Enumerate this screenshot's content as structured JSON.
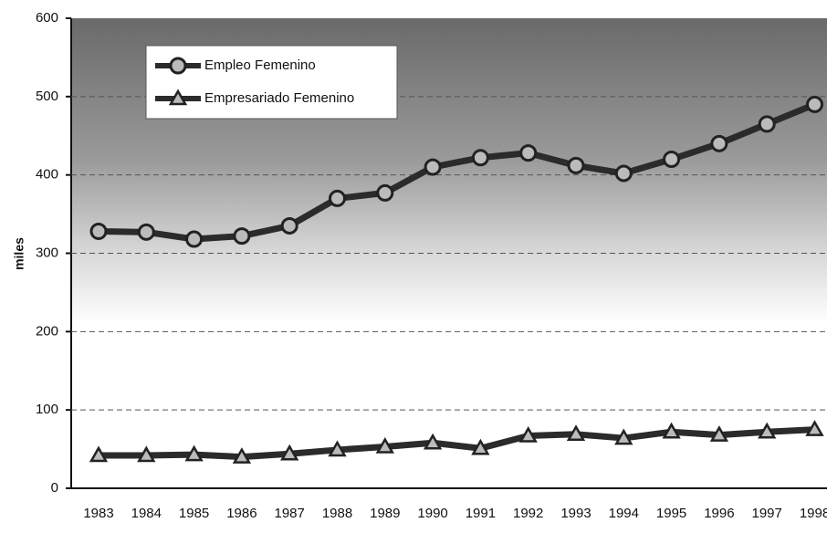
{
  "chart_data": {
    "type": "line",
    "y_label": "miles",
    "categories": [
      "1983",
      "1984",
      "1985",
      "1986",
      "1987",
      "1988",
      "1989",
      "1990",
      "1991",
      "1992",
      "1993",
      "1994",
      "1995",
      "1996",
      "1997",
      "1998"
    ],
    "series": [
      {
        "name": "Empleo Femenino",
        "color": "#2b2b2b",
        "marker": "circle",
        "values": [
          328,
          327,
          318,
          322,
          335,
          370,
          377,
          410,
          422,
          428,
          412,
          402,
          420,
          440,
          465,
          490
        ]
      },
      {
        "name": "Empresariado Femenino",
        "color": "#2b2b2b",
        "marker": "triangle",
        "values": [
          42,
          42,
          43,
          40,
          44,
          49,
          53,
          58,
          51,
          67,
          69,
          64,
          72,
          68,
          72,
          75
        ]
      }
    ],
    "ylim": [
      0,
      600
    ],
    "yticks": [
      0,
      100,
      200,
      300,
      400,
      500,
      600
    ],
    "grid": true,
    "legend": "upper left"
  }
}
